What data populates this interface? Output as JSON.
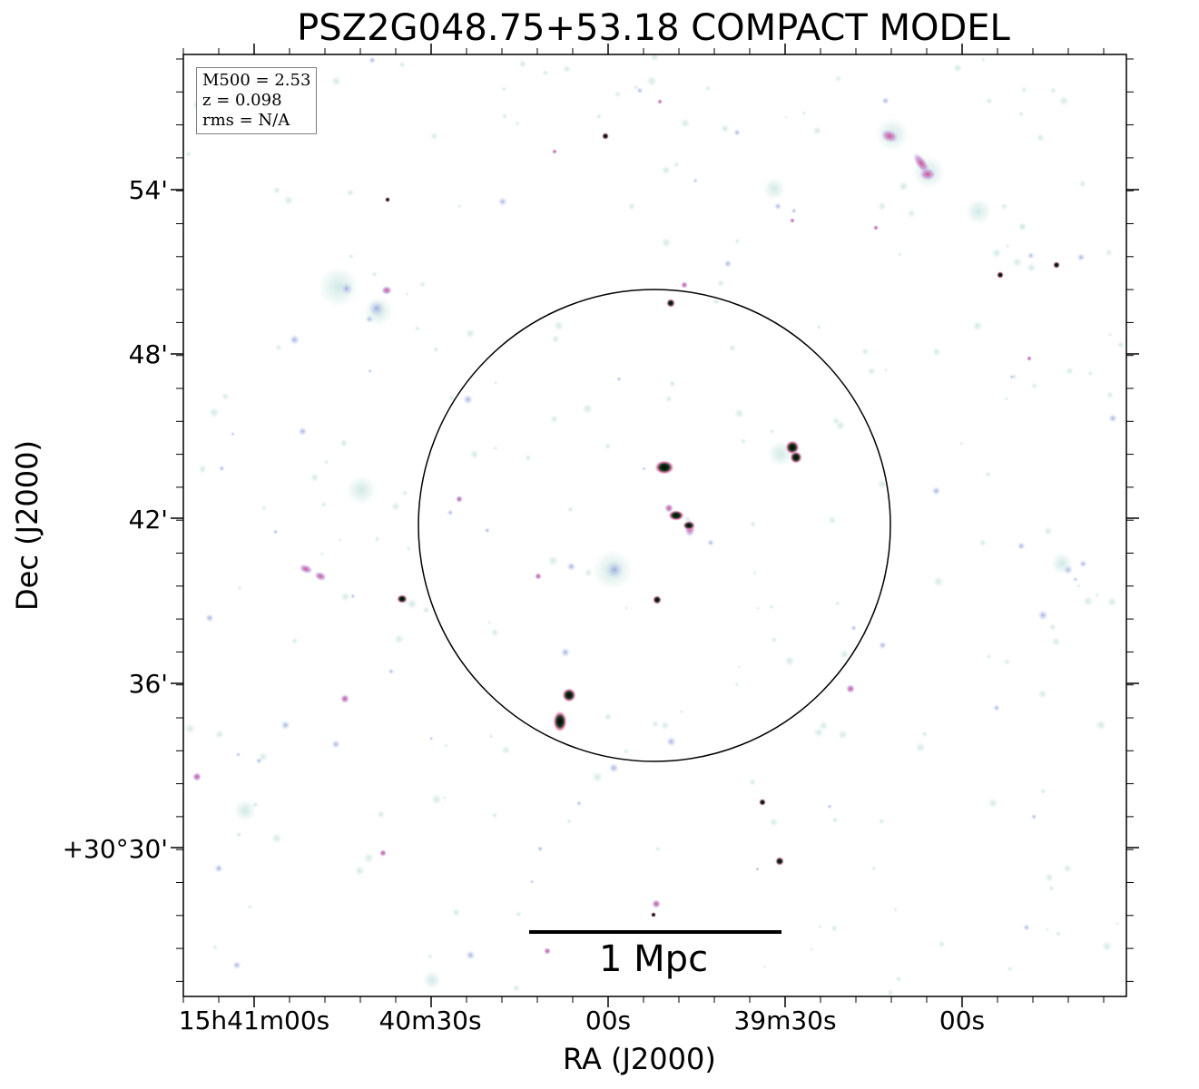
{
  "figure": {
    "title": "PSZ2G048.75+53.18 COMPACT MODEL",
    "xlabel": "RA (J2000)",
    "ylabel": "Dec (J2000)",
    "info_box": {
      "line1": "M500 = 2.53",
      "line2": "z = 0.098",
      "line3": "rms = N/A"
    },
    "scale_bar_label": "1 Mpc",
    "y_ticks": [
      "54'",
      "48'",
      "42'",
      "36'",
      "+30°30'"
    ],
    "x_ticks": [
      "15h41m00s",
      "40m30s",
      "00s",
      "39m30s",
      "00s"
    ],
    "colors": {
      "background": "#ffffff",
      "faint_source": "#cfe8e4",
      "mid_source": "#9aa6e0",
      "bright_source": "#d3508a",
      "core": "#0a3a1c"
    }
  }
}
